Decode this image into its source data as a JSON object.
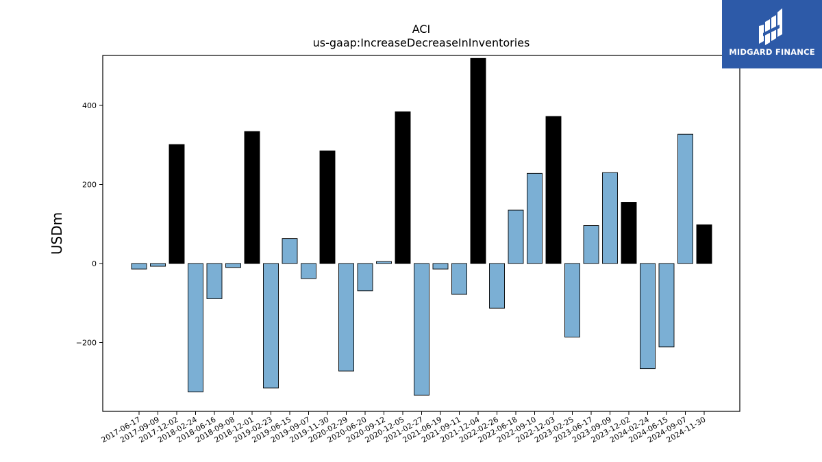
{
  "chart_data": {
    "type": "bar",
    "title": "ACI",
    "subtitle": "us-gaap:IncreaseDecreaseInInventories",
    "xlabel": "",
    "ylabel": "USDm",
    "ylim": [
      -375,
      525
    ],
    "yticks": [
      -200,
      0,
      200,
      400
    ],
    "grid": false,
    "colors": {
      "quarter": "#7bafd4",
      "year_end": "#000000",
      "edge": "#000000"
    },
    "categories": [
      "2017-06-17",
      "2017-09-09",
      "2017-12-02",
      "2018-02-24",
      "2018-06-16",
      "2018-09-08",
      "2018-12-01",
      "2019-02-23",
      "2019-06-15",
      "2019-09-07",
      "2019-11-30",
      "2020-02-29",
      "2020-06-20",
      "2020-09-12",
      "2020-12-05",
      "2021-02-27",
      "2021-06-19",
      "2021-09-11",
      "2021-12-04",
      "2022-02-26",
      "2022-06-18",
      "2022-09-10",
      "2022-12-03",
      "2023-02-25",
      "2023-06-17",
      "2023-09-09",
      "2023-12-02",
      "2024-02-24",
      "2024-06-15",
      "2024-09-07",
      "2024-11-30"
    ],
    "values": [
      -14,
      -7,
      301,
      -325,
      -89,
      -10,
      334,
      -315,
      63,
      -38,
      285,
      -272,
      -69,
      5,
      384,
      -333,
      -14,
      -78,
      519,
      -113,
      135,
      228,
      372,
      -186,
      96,
      230,
      155,
      -266,
      -211,
      327,
      98
    ],
    "highlight": [
      false,
      false,
      true,
      false,
      false,
      false,
      true,
      false,
      false,
      false,
      true,
      false,
      false,
      false,
      true,
      false,
      false,
      false,
      true,
      false,
      false,
      false,
      true,
      false,
      false,
      false,
      true,
      false,
      false,
      false,
      true
    ]
  },
  "logo": {
    "text": "MIDGARD FINANCE"
  }
}
